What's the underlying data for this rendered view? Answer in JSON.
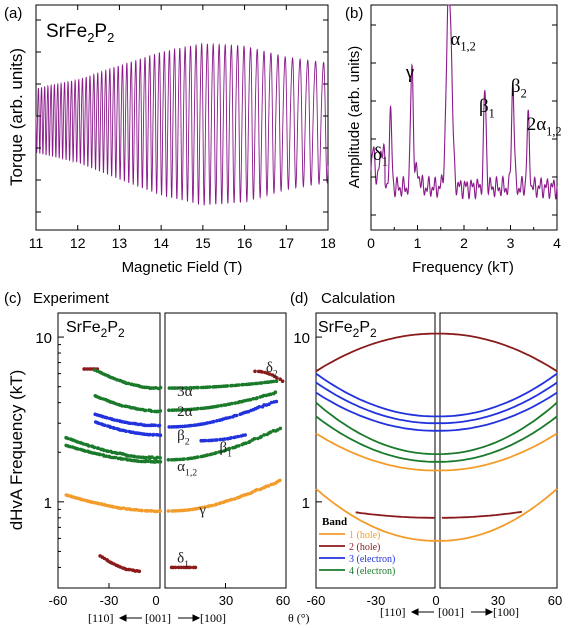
{
  "colors": {
    "torque": "#8a1a8a",
    "fft": "#8a1a8a",
    "band1": "#f39c2b",
    "band2": "#8b1a1a",
    "band3": "#2233dd",
    "band4": "#1a7a2a",
    "exp_orange": "#f39c2b",
    "exp_red": "#8b1a1a",
    "exp_green": "#1a7a2a",
    "exp_blue": "#2233dd"
  },
  "panels": {
    "a": {
      "letter": "(a)",
      "compound": "SrFe",
      "sub1": "2",
      "mid": "P",
      "sub2": "2"
    },
    "b": {
      "letter": "(b)"
    },
    "c": {
      "letter": "(c)",
      "title": "Experiment",
      "compound": "SrFe",
      "sub1": "2",
      "mid": "P",
      "sub2": "2"
    },
    "d": {
      "letter": "(d)",
      "title": "Calculation",
      "compound": "SrFe",
      "sub1": "2",
      "mid": "P",
      "sub2": "2"
    }
  },
  "bottom": {
    "dir_left": "[110]",
    "dir_mid": "[001]",
    "dir_right": "[100]",
    "theta_label": "θ (°)"
  },
  "legend": {
    "title": "Band",
    "items": [
      "1 (hole)",
      "2 (hole)",
      "3 (electron)",
      "4 (electron)"
    ]
  },
  "chart_data": [
    {
      "id": "a",
      "type": "line",
      "title": "SrFe2P2",
      "xlabel": "Magnetic Field (T)",
      "ylabel": "Torque (arb. units)",
      "xlim": [
        11,
        18
      ],
      "x_ticks": [
        11,
        12,
        13,
        14,
        15,
        16,
        17,
        18
      ],
      "series": [
        {
          "description": "torque oscillations",
          "envelope_x": [
            11,
            12,
            13,
            14,
            15,
            16,
            17,
            18
          ],
          "envelope_amplitude": [
            0.35,
            0.45,
            0.62,
            0.78,
            0.88,
            0.85,
            0.72,
            0.65
          ]
        }
      ]
    },
    {
      "id": "b",
      "type": "line",
      "xlabel": "Frequency (kT)",
      "ylabel": "Amplitude (arb. units)",
      "xlim": [
        0,
        4
      ],
      "x_ticks": [
        0,
        1,
        2,
        3,
        4
      ],
      "peaks": [
        {
          "label": "δ",
          "sub": "1",
          "x": 0.42,
          "y": 0.35
        },
        {
          "label": "γ",
          "sub": "",
          "x": 0.88,
          "y": 0.62
        },
        {
          "label": "α",
          "sub": "1,2",
          "x": 1.68,
          "y": 1.0
        },
        {
          "label": "β",
          "sub": "1",
          "x": 2.45,
          "y": 0.47
        },
        {
          "label": "β",
          "sub": "2",
          "x": 3.05,
          "y": 0.52
        },
        {
          "label": "2α",
          "sub": "1,2",
          "x": 3.38,
          "y": 0.33
        }
      ]
    },
    {
      "id": "c",
      "type": "scatter",
      "title": "Experiment",
      "ylabel": "dHvA Frequency (kT)",
      "yscale": "log",
      "ylim": [
        0.3,
        14
      ],
      "y_ticks": [
        1,
        10
      ],
      "x_ticks": [
        -60,
        -30,
        0,
        30,
        60
      ],
      "branches": [
        {
          "color": "exp_red",
          "theta_from": -45,
          "theta_to": -37,
          "f0": 6.4,
          "f1": 6.4
        },
        {
          "color": "exp_green",
          "theta_from": -38,
          "theta_to": 0,
          "f0": 6.3,
          "f1": 4.9
        },
        {
          "color": "exp_green",
          "theta_from": -38,
          "theta_to": 0,
          "f0": 4.4,
          "f1": 3.55
        },
        {
          "color": "exp_blue",
          "theta_from": -38,
          "theta_to": 0,
          "f0": 3.4,
          "f1": 2.9
        },
        {
          "color": "exp_blue",
          "theta_from": -38,
          "theta_to": 0,
          "f0": 3.05,
          "f1": 2.55
        },
        {
          "color": "exp_green",
          "theta_from": -55,
          "theta_to": 0,
          "f0": 2.45,
          "f1": 1.85
        },
        {
          "color": "exp_green",
          "theta_from": -55,
          "theta_to": 0,
          "f0": 2.2,
          "f1": 1.75
        },
        {
          "color": "exp_orange",
          "theta_from": -55,
          "theta_to": 0,
          "f0": 1.1,
          "f1": 0.88
        },
        {
          "color": "exp_red",
          "theta_from": -35,
          "theta_to": -12,
          "f0": 0.47,
          "f1": 0.38
        },
        {
          "color": "exp_green",
          "theta_from": 2,
          "theta_to": 55,
          "f0": 4.9,
          "f1": 5.4
        },
        {
          "color": "exp_green",
          "theta_from": 2,
          "theta_to": 55,
          "f0": 3.6,
          "f1": 4.6
        },
        {
          "color": "exp_blue",
          "theta_from": 2,
          "theta_to": 55,
          "f0": 2.85,
          "f1": 4.1
        },
        {
          "color": "exp_blue",
          "theta_from": 18,
          "theta_to": 40,
          "f0": 2.35,
          "f1": 2.55
        },
        {
          "color": "exp_green",
          "theta_from": 2,
          "theta_to": 57,
          "f0": 1.8,
          "f1": 2.8
        },
        {
          "color": "exp_orange",
          "theta_from": 2,
          "theta_to": 57,
          "f0": 0.88,
          "f1": 1.35
        },
        {
          "color": "exp_red",
          "theta_from": 45,
          "theta_to": 58,
          "f0": 6.2,
          "f1": 5.4
        },
        {
          "color": "exp_red",
          "theta_from": 3,
          "theta_to": 15,
          "f0": 0.4,
          "f1": 0.4
        }
      ],
      "annotations": [
        {
          "text": "3α",
          "theta": 6,
          "f": 4.7
        },
        {
          "text": "2α",
          "theta": 6,
          "f": 3.55
        },
        {
          "text": "β",
          "sub": "2",
          "theta": 6,
          "f": 2.55
        },
        {
          "text": "β",
          "sub": "1",
          "theta": 27,
          "f": 2.15
        },
        {
          "text": "α",
          "sub": "1,2",
          "theta": 6,
          "f": 1.65
        },
        {
          "text": "γ",
          "theta": 17,
          "f": 0.9
        },
        {
          "text": "δ",
          "sub": "1",
          "theta": 6,
          "f": 0.46
        },
        {
          "text": "δ",
          "sub": "2",
          "theta": 50,
          "f": 6.6
        }
      ]
    },
    {
      "id": "d",
      "type": "line",
      "title": "Calculation",
      "yscale": "log",
      "ylim": [
        0.3,
        14
      ],
      "y_ticks": [
        1,
        10
      ],
      "x_ticks": [
        -60,
        -30,
        0,
        30,
        60
      ],
      "curves": [
        {
          "band": 2,
          "theta_from": -60,
          "theta_to": 60,
          "f_edge": 6.2,
          "f_center": 10.5
        },
        {
          "band": 3,
          "theta_from": -60,
          "theta_to": 60,
          "f_edge": 6.0,
          "f_center": 3.3
        },
        {
          "band": 3,
          "theta_from": -60,
          "theta_to": 60,
          "f_edge": 5.3,
          "f_center": 3.0
        },
        {
          "band": 3,
          "theta_from": -60,
          "theta_to": 60,
          "f_edge": 4.6,
          "f_center": 2.7
        },
        {
          "band": 4,
          "theta_from": -60,
          "theta_to": 60,
          "f_edge": 4.0,
          "f_center": 1.95
        },
        {
          "band": 4,
          "theta_from": -60,
          "theta_to": 60,
          "f_edge": 3.3,
          "f_center": 1.75
        },
        {
          "band": 1,
          "theta_from": -60,
          "theta_to": 60,
          "f_edge": 2.6,
          "f_center": 1.55
        },
        {
          "band": 1,
          "theta_from": -60,
          "theta_to": 60,
          "f_edge": 1.2,
          "f_center": 0.58
        },
        {
          "band": 2,
          "theta_from": -40,
          "theta_to": 42,
          "f_edge": 0.95,
          "f_center": 0.8
        }
      ]
    }
  ]
}
